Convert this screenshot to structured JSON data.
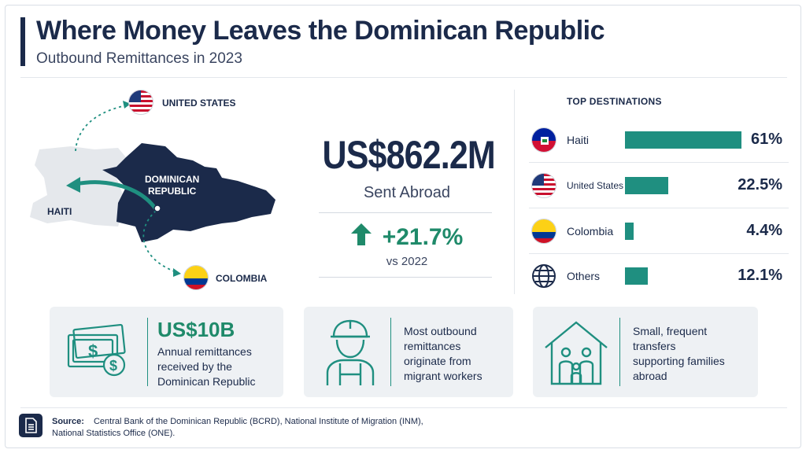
{
  "header": {
    "title": "Where Money Leaves the Dominican Republic",
    "subtitle": "Outbound Remittances in 2023"
  },
  "map": {
    "labels": {
      "united_states": "UNITED STATES",
      "dominican_republic_line1": "DOMINICAN",
      "dominican_republic_line2": "REPUBLIC",
      "haiti": "HAITI",
      "colombia": "COLOMBIA"
    }
  },
  "summary": {
    "amount": "US$862.2M",
    "amount_caption": "Sent Abroad",
    "growth": "+21.7%",
    "growth_caption": "vs 2022"
  },
  "chart_data": {
    "type": "bar",
    "title": "TOP DESTINATIONS",
    "categories": [
      "Haiti",
      "United States",
      "Colombia",
      "Others"
    ],
    "values": [
      61,
      22.5,
      4.4,
      12.1
    ],
    "value_labels": [
      "61%",
      "22.5%",
      "4.4%",
      "12.1%"
    ],
    "orientation": "horizontal",
    "unit": "%",
    "xlim": [
      0,
      61
    ],
    "color": "#1f8f80"
  },
  "cards": [
    {
      "big": "US$10B",
      "lines": [
        "Annual remittances",
        "received by the",
        "Dominican Republic"
      ]
    },
    {
      "lines": [
        "Most outbound",
        "remittances",
        "originate from",
        "migrant workers"
      ]
    },
    {
      "lines": [
        "Small, frequent",
        "transfers",
        "supporting families",
        "abroad"
      ]
    }
  ],
  "source": {
    "label": "Source:",
    "line1": "Central Bank of the Dominican Republic (BCRD), National Institute of Migration (INM),",
    "line2": "National Statistics Office (ONE)."
  },
  "colors": {
    "navy": "#1b2a4a",
    "teal": "#1f8f80",
    "green": "#1f8a6a",
    "card_bg": "#eef1f4"
  },
  "icons": [
    "us-flag-icon",
    "haiti-flag-icon",
    "colombia-flag-icon",
    "globe-icon",
    "up-arrow-icon",
    "money-icon",
    "worker-icon",
    "family-home-icon",
    "document-icon"
  ]
}
